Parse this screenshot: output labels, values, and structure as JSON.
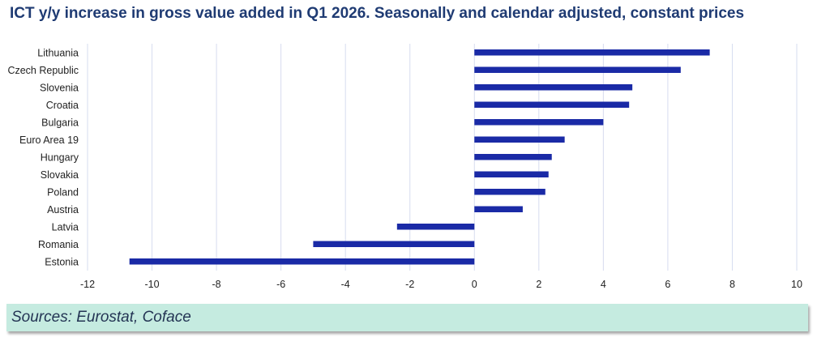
{
  "chart_data": {
    "type": "bar",
    "orientation": "horizontal",
    "title": "ICT y/y increase in gross value added in Q1 2026. Seasonally and calendar adjusted, constant prices",
    "categories": [
      "Lithuania",
      "Czech Republic",
      "Slovenia",
      "Croatia",
      "Bulgaria",
      "Euro Area 19",
      "Hungary",
      "Slovakia",
      "Poland",
      "Austria",
      "Latvia",
      "Romania",
      "Estonia"
    ],
    "values": [
      7.3,
      6.4,
      4.9,
      4.8,
      4.0,
      2.8,
      2.4,
      2.3,
      2.2,
      1.5,
      -2.4,
      -5.0,
      -10.7
    ],
    "xlim": [
      -12,
      10
    ],
    "xticks": [
      "-12",
      "-10",
      "-8",
      "-6",
      "-4",
      "-2",
      "0",
      "2",
      "4",
      "6",
      "8",
      "10"
    ],
    "grid": "vertical",
    "legend": "none",
    "bar_color": "#1a2aa6",
    "grid_color": "#d6dcef"
  },
  "source": "Sources: Eurostat, Coface"
}
